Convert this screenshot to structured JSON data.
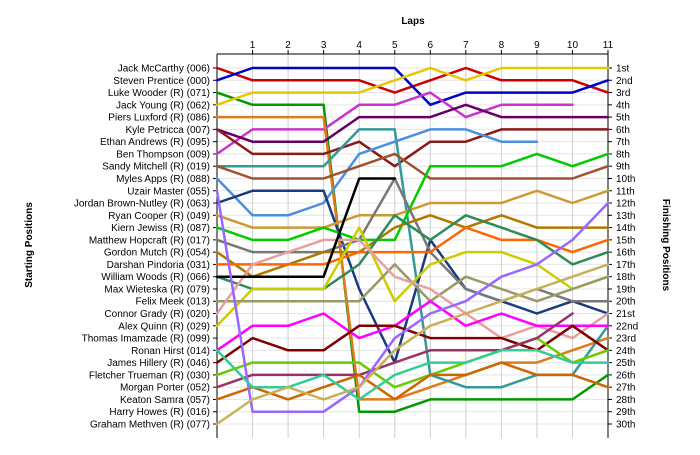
{
  "chart_data": {
    "type": "line",
    "title": "",
    "xlabel": "Laps",
    "ylabel_left": "Starting Positions",
    "ylabel_right": "Finishing Positions",
    "laps": [
      0,
      1,
      2,
      3,
      4,
      5,
      6,
      7,
      8,
      9,
      10,
      11
    ],
    "lap_ticks": [
      "1",
      "2",
      "3",
      "4",
      "5",
      "6",
      "7",
      "8",
      "9",
      "10",
      "11"
    ],
    "positions_count": 30,
    "grid": true,
    "drivers": [
      "Jack McCarthy (006)",
      "Steven Prentice (000)",
      "Luke Wooder (R) (071)",
      "Jack Young  (R) (062)",
      "Piers Luxford  (R) (086)",
      "Kyle Petricca  (007)",
      "Ethan Andrews (R) (095)",
      "Ben Thompson (009)",
      "Sandy Mitchell (R) (019)",
      "Myles Apps  (R) (088)",
      "Uzair Master (055)",
      "Jordan Brown-Nutley (R) (063)",
      "Ryan Cooper (R) (049)",
      "Kiern Jewiss  (R) (087)",
      "Matthew Hopcraft (R) (017)",
      "Gordon Mutch (R) (054)",
      "Darshan Pindoria (031)",
      "William Woods (R) (066)",
      "Max Wieteska (R) (079)",
      "Felix Meek (013)",
      "Connor Grady (R) (020)",
      "Alex Quinn (R) (029)",
      "Thomas Imamzade (R) (099)",
      "Ronan Hirst (014)",
      "James Hillery (R) (046)",
      "Fletcher Trueman (R) (030)",
      "Morgan Porter (052)",
      "Keaton Samra  (057)",
      "Harry Howes (R) (016)",
      "Graham Methven  (R) (077)"
    ],
    "finishing_labels": [
      "1st",
      "2nd",
      "3rd",
      "4th",
      "5th",
      "6th",
      "7th",
      "8th",
      "9th",
      "10th",
      "11th",
      "12th",
      "13th",
      "14th",
      "15th",
      "16th",
      "17th",
      "18th",
      "19th",
      "20th",
      "21st",
      "22nd",
      "23rd",
      "24th",
      "25th",
      "26th",
      "27th",
      "28th",
      "29th",
      "30th"
    ],
    "series": [
      {
        "color": "#cc0000",
        "values": [
          1,
          2,
          2,
          2,
          2,
          3,
          2,
          1,
          2,
          2,
          2,
          3
        ]
      },
      {
        "color": "#0000cc",
        "values": [
          2,
          1,
          1,
          1,
          1,
          1,
          4,
          3,
          3,
          3,
          3,
          2
        ]
      },
      {
        "color": "#009900",
        "values": [
          3,
          4,
          4,
          4,
          29,
          29,
          28,
          28,
          28,
          28,
          28,
          26
        ]
      },
      {
        "color": "#e6c800",
        "values": [
          4,
          3,
          3,
          3,
          3,
          2,
          1,
          2,
          1,
          1,
          1,
          1
        ]
      },
      {
        "color": "#cc33cc",
        "values": [
          8,
          6,
          6,
          6,
          4,
          4,
          3,
          5,
          4,
          4,
          4,
          null
        ]
      },
      {
        "color": "#e07a1a",
        "values": [
          5,
          5,
          5,
          5,
          28,
          28,
          27,
          26,
          25,
          25,
          24,
          23
        ]
      },
      {
        "color": "#660066",
        "values": [
          6,
          7,
          7,
          7,
          5,
          5,
          5,
          4,
          5,
          5,
          5,
          5
        ]
      },
      {
        "color": "#8b1a1a",
        "values": [
          6,
          8,
          8,
          8,
          7,
          9,
          7,
          7,
          6,
          6,
          6,
          6
        ]
      },
      {
        "color": "#339999",
        "values": [
          9,
          9,
          9,
          9,
          6,
          6,
          26,
          27,
          27,
          26,
          26,
          22
        ]
      },
      {
        "color": "#4a90e2",
        "values": [
          10,
          13,
          13,
          12,
          8,
          7,
          6,
          6,
          7,
          7,
          null,
          null
        ]
      },
      {
        "color": "#a0522d",
        "values": [
          9,
          10,
          10,
          10,
          9,
          8,
          10,
          10,
          10,
          10,
          10,
          9
        ]
      },
      {
        "color": "#1a3b80",
        "values": [
          12,
          11,
          11,
          11,
          19,
          25,
          15,
          19,
          20,
          21,
          20,
          21
        ]
      },
      {
        "color": "#cc9933",
        "values": [
          13,
          14,
          14,
          14,
          13,
          13,
          12,
          12,
          12,
          11,
          12,
          11
        ]
      },
      {
        "color": "#00cc00",
        "values": [
          14,
          15,
          15,
          14,
          15,
          15,
          9,
          9,
          9,
          8,
          9,
          8
        ]
      },
      {
        "color": "#777777",
        "values": [
          15,
          16,
          16,
          16,
          15,
          10,
          16,
          19,
          20,
          19,
          20,
          20
        ]
      },
      {
        "color": "#b37700",
        "values": [
          16,
          18,
          17,
          16,
          16,
          14,
          13,
          14,
          13,
          14,
          14,
          14
        ]
      },
      {
        "color": "#ff6600",
        "values": [
          17,
          17,
          17,
          17,
          16,
          16,
          16,
          14,
          15,
          15,
          16,
          15
        ]
      },
      {
        "color": "#2e8b57",
        "values": [
          18,
          19,
          19,
          19,
          17,
          13,
          15,
          13,
          14,
          15,
          17,
          16
        ]
      },
      {
        "color": "#cccc00",
        "values": [
          22,
          19,
          19,
          19,
          14,
          20,
          17,
          16,
          16,
          17,
          19,
          18
        ]
      },
      {
        "color": "#999966",
        "values": [
          20,
          20,
          20,
          20,
          20,
          17,
          20,
          18,
          19,
          20,
          19,
          18
        ]
      },
      {
        "color": "#e6a0a0",
        "values": [
          21,
          17,
          16,
          15,
          15,
          18,
          19,
          21,
          23,
          22,
          23,
          21
        ]
      },
      {
        "color": "#ff00ff",
        "values": [
          24,
          22,
          22,
          21,
          23,
          22,
          20,
          22,
          21,
          22,
          22,
          22
        ]
      },
      {
        "color": "#800000",
        "values": [
          25,
          23,
          24,
          24,
          22,
          22,
          23,
          23,
          23,
          24,
          22,
          24
        ]
      },
      {
        "color": "#000000",
        "values": [
          18,
          18,
          18,
          18,
          10,
          10,
          null,
          null,
          null,
          null,
          null,
          null
        ]
      },
      {
        "color": "#66cc00",
        "values": [
          26,
          25,
          25,
          25,
          25,
          27,
          26,
          25,
          24,
          23,
          25,
          24
        ]
      },
      {
        "color": "#993366",
        "values": [
          27,
          26,
          26,
          26,
          26,
          25,
          24,
          24,
          24,
          23,
          21,
          null
        ]
      },
      {
        "color": "#cc6600",
        "values": [
          28,
          27,
          28,
          27,
          26,
          28,
          26,
          26,
          25,
          26,
          26,
          27
        ]
      },
      {
        "color": "#9966ff",
        "values": [
          11,
          29,
          29,
          29,
          27,
          23,
          21,
          20,
          18,
          17,
          15,
          12
        ]
      },
      {
        "color": "#33cc99",
        "values": [
          24,
          27,
          27,
          26,
          28,
          26,
          25,
          25,
          24,
          24,
          25,
          25
        ]
      },
      {
        "color": "#c8b05a",
        "values": [
          30,
          28,
          27,
          28,
          27,
          24,
          22,
          21,
          20,
          19,
          18,
          17
        ]
      }
    ]
  }
}
